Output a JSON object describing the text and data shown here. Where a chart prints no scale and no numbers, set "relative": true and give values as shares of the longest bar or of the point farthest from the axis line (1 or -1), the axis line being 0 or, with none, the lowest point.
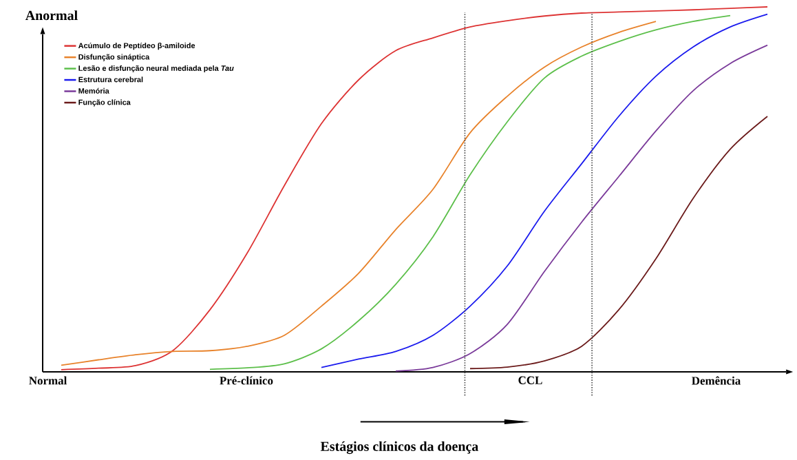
{
  "chart_data": {
    "type": "line",
    "relative": true,
    "ylabel": "Anormal",
    "categories": [
      null,
      null,
      null,
      null,
      null,
      null,
      null,
      null,
      null,
      null,
      null,
      null,
      null,
      null,
      null,
      null,
      null,
      null,
      null,
      null
    ],
    "annotations": [
      "Normal",
      "Pré-clínico",
      "CCL",
      "Demência",
      "Estágios clínicos da doença"
    ],
    "legend": "top left",
    "marker": "none",
    "line_style": "solid",
    "series": [
      {
        "name": "Acúmulo de Peptídeo β-amiloide",
        "color": "#dd3333",
        "values": [
          0.006,
          0.01,
          0.017,
          0.058,
          0.17,
          0.325,
          0.51,
          0.68,
          0.8,
          0.88,
          0.915,
          0.945,
          0.962,
          0.975,
          0.983,
          0.986,
          0.989,
          0.992,
          0.996,
          1.0
        ]
      },
      {
        "name": "Disfunção sináptica",
        "color": "#e8822a",
        "values": [
          0.018,
          0.033,
          0.047,
          0.056,
          0.058,
          0.07,
          0.1,
          0.18,
          0.27,
          0.39,
          0.5,
          0.655,
          0.755,
          0.835,
          0.89,
          0.93,
          0.96,
          null,
          null,
          null
        ]
      },
      {
        "name": "Lesão e disfunção neural mediada pela *Tau*",
        "color": "#5cbf4a",
        "values": [
          null,
          null,
          null,
          null,
          0.007,
          0.011,
          0.022,
          0.063,
          0.14,
          0.24,
          0.37,
          0.54,
          0.685,
          0.805,
          0.865,
          0.905,
          0.937,
          0.96,
          0.976,
          null
        ]
      },
      {
        "name": "Estrutura cerebral",
        "color": "#1a1aee",
        "values": [
          null,
          null,
          null,
          null,
          null,
          null,
          null,
          0.012,
          0.035,
          0.056,
          0.1,
          0.18,
          0.29,
          0.44,
          0.57,
          0.7,
          0.81,
          0.89,
          0.945,
          0.98
        ]
      },
      {
        "name": "Memória",
        "color": "#7a3a9a",
        "values": [
          null,
          null,
          null,
          null,
          null,
          null,
          null,
          null,
          null,
          0.002,
          0.012,
          0.05,
          0.13,
          0.275,
          0.41,
          0.535,
          0.66,
          0.77,
          0.845,
          0.895
        ]
      },
      {
        "name": "Função clínica",
        "color": "#6b1a1a",
        "values": [
          null,
          null,
          null,
          null,
          null,
          null,
          null,
          null,
          null,
          null,
          null,
          0.009,
          0.013,
          0.03,
          0.07,
          0.17,
          0.31,
          0.475,
          0.61,
          0.7
        ]
      }
    ]
  }
}
